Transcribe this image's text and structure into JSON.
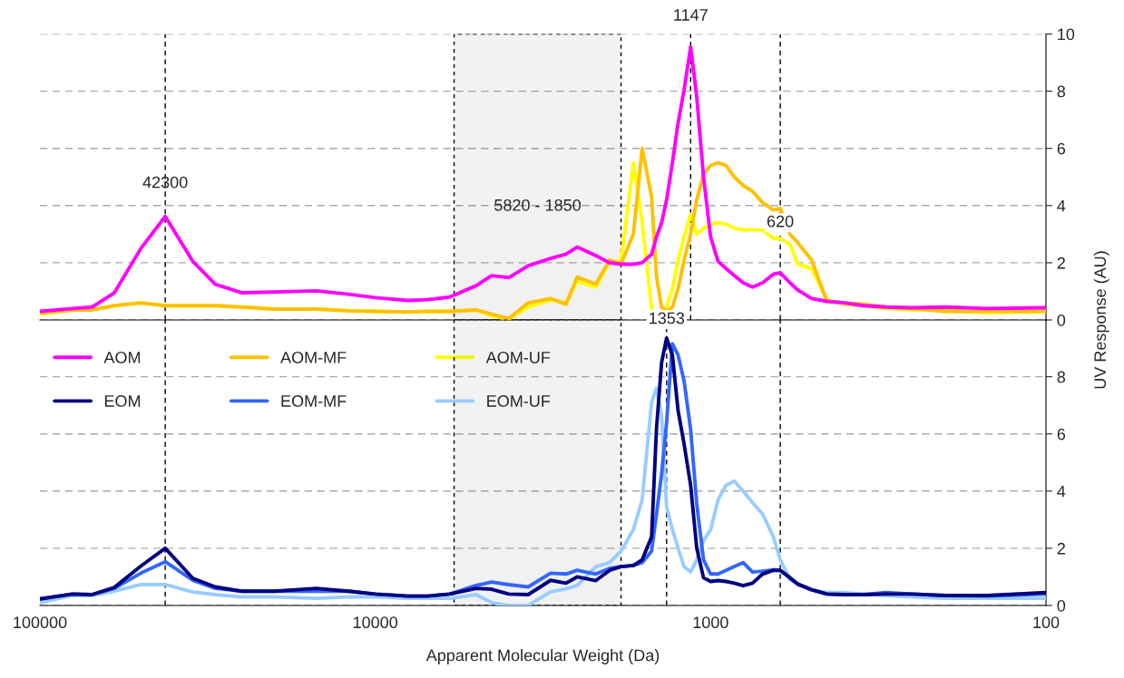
{
  "chart_data": [
    {
      "type": "line",
      "log": "x",
      "xlim": [
        100000,
        100
      ],
      "ylim": [
        0,
        10
      ],
      "yticks": [
        0,
        2,
        4,
        6,
        8,
        10
      ],
      "tick_labels": "y",
      "grid": "y",
      "legend": "bottom left",
      "line_style": "solid",
      "marker": "none",
      "x": [
        100000,
        80000,
        70000,
        60000,
        50000,
        42300,
        35000,
        30000,
        25000,
        20000,
        15000,
        12000,
        10000,
        8000,
        7000,
        6000,
        5000,
        4500,
        4000,
        3500,
        3000,
        2700,
        2500,
        2200,
        2000,
        1850,
        1700,
        1600,
        1500,
        1450,
        1400,
        1353,
        1300,
        1250,
        1200,
        1147,
        1100,
        1050,
        1000,
        950,
        900,
        850,
        800,
        750,
        700,
        650,
        620,
        580,
        550,
        500,
        450,
        400,
        350,
        300,
        250,
        200,
        150,
        100
      ],
      "series": [
        {
          "name": "AOM",
          "color": "#ff00ff",
          "values": [
            0.3,
            0.4,
            0.45,
            0.95,
            2.5,
            3.62,
            2.05,
            1.25,
            0.95,
            0.98,
            1.02,
            0.9,
            0.78,
            0.68,
            0.71,
            0.8,
            1.2,
            1.55,
            1.48,
            1.9,
            2.15,
            2.3,
            2.55,
            2.25,
            2.0,
            1.95,
            1.95,
            2.0,
            2.3,
            2.9,
            3.4,
            4.2,
            5.5,
            6.9,
            8.05,
            9.55,
            7.8,
            5.0,
            2.9,
            2.05,
            1.8,
            1.55,
            1.3,
            1.15,
            1.3,
            1.6,
            1.65,
            1.3,
            1.05,
            0.75,
            0.65,
            0.6,
            0.5,
            0.45,
            0.43,
            0.45,
            0.4,
            0.43
          ]
        },
        {
          "name": "AOM-MF",
          "color": "#ffc000",
          "values": [
            0.25,
            0.35,
            0.35,
            0.5,
            0.6,
            0.5,
            0.5,
            0.5,
            0.45,
            0.38,
            0.38,
            0.32,
            0.3,
            0.28,
            0.3,
            0.3,
            0.35,
            0.2,
            0.05,
            0.6,
            0.75,
            0.55,
            1.5,
            1.25,
            2.1,
            1.95,
            3.0,
            6.0,
            4.3,
            1.5,
            0.45,
            0.3,
            0.45,
            1.1,
            2.1,
            3.0,
            4.2,
            5.1,
            5.4,
            5.5,
            5.4,
            5.0,
            4.7,
            4.5,
            4.1,
            3.85,
            3.9,
            3.0,
            2.7,
            2.1,
            0.65,
            0.6,
            0.55,
            0.45,
            0.4,
            0.3,
            0.3,
            0.3
          ]
        },
        {
          "name": "AOM-UF",
          "color": "#ffff00",
          "values": [
            0.2,
            0.35,
            0.35,
            0.5,
            0.6,
            0.5,
            0.5,
            0.5,
            0.45,
            0.38,
            0.38,
            0.32,
            0.3,
            0.28,
            0.3,
            0.3,
            0.35,
            0.15,
            0.02,
            0.45,
            0.7,
            0.6,
            1.35,
            1.15,
            2.05,
            2.05,
            5.5,
            3.4,
            0.4,
            null,
            null,
            0.45,
            1.1,
            2.1,
            2.9,
            3.7,
            3.0,
            3.2,
            3.35,
            3.4,
            3.35,
            3.2,
            3.15,
            3.15,
            3.15,
            2.85,
            2.85,
            2.65,
            1.95,
            1.8,
            0.7,
            0.55,
            0.5,
            0.4,
            0.35,
            0.35,
            0.25,
            0.3
          ]
        }
      ],
      "ref_lines": [
        {
          "axis": "x",
          "value": 42300,
          "color": "#000000",
          "line_style": "dashed"
        },
        {
          "axis": "x",
          "value": 1147,
          "color": "#000000",
          "line_style": "dashed"
        },
        {
          "axis": "x",
          "value": 620,
          "color": "#000000",
          "line_style": "dashed"
        }
      ],
      "bands": [
        {
          "axis": "x",
          "from": 5820,
          "to": 1850,
          "color": "#000000"
        }
      ],
      "annotations": [
        {
          "text": "42300",
          "x": 42300,
          "y": 4.5
        },
        {
          "text": "1147",
          "x": 1147,
          "y": 10
        },
        "5820 - 1850",
        {
          "text": "620",
          "x": 620,
          "y": 3.4
        }
      ]
    },
    {
      "type": "line",
      "log": "x",
      "xlim": [
        100000,
        100
      ],
      "xticks": [
        100000,
        10000,
        1000,
        100
      ],
      "ylim": [
        0,
        10
      ],
      "yticks": [
        0,
        2,
        4,
        6,
        8
      ],
      "grid": "y",
      "legend": "top left",
      "line_style": "solid",
      "marker": "none",
      "xlabel": "Apparent Molecular Weight (Da)",
      "ylabel": "UV Response (AU)",
      "x": [
        100000,
        80000,
        70000,
        60000,
        50000,
        42300,
        35000,
        30000,
        25000,
        20000,
        15000,
        12000,
        10000,
        8000,
        7000,
        6000,
        5000,
        4500,
        4000,
        3500,
        3000,
        2700,
        2500,
        2200,
        2000,
        1850,
        1700,
        1600,
        1500,
        1450,
        1400,
        1353,
        1300,
        1250,
        1200,
        1147,
        1100,
        1050,
        1000,
        950,
        900,
        850,
        800,
        750,
        700,
        650,
        620,
        580,
        550,
        500,
        450,
        400,
        350,
        300,
        250,
        200,
        150,
        100
      ],
      "series": [
        {
          "name": "EOM",
          "color": "#000080",
          "values": [
            0.23,
            0.4,
            0.38,
            0.63,
            1.38,
            2.0,
            0.95,
            0.65,
            0.5,
            0.5,
            0.6,
            0.5,
            0.4,
            0.33,
            0.33,
            0.4,
            0.6,
            0.57,
            0.4,
            0.38,
            0.88,
            0.78,
            1.0,
            0.87,
            1.23,
            1.36,
            1.4,
            1.6,
            2.4,
            6.2,
            8.5,
            9.35,
            8.75,
            6.8,
            5.65,
            4.2,
            2.0,
            0.97,
            0.84,
            0.87,
            0.84,
            0.78,
            0.69,
            0.78,
            1.1,
            1.23,
            1.23,
            0.97,
            0.75,
            0.55,
            0.4,
            0.38,
            0.38,
            0.4,
            0.4,
            0.35,
            0.35,
            0.45
          ]
        },
        {
          "name": "EOM-MF",
          "color": "#3366ff",
          "values": [
            0.23,
            0.4,
            0.38,
            0.6,
            1.13,
            1.53,
            0.88,
            0.6,
            0.5,
            0.5,
            0.5,
            0.5,
            0.4,
            0.33,
            0.33,
            0.4,
            0.7,
            0.82,
            0.73,
            0.65,
            1.13,
            1.1,
            1.23,
            1.1,
            1.3,
            1.36,
            1.4,
            1.5,
            1.9,
            3.2,
            4.6,
            6.4,
            9.15,
            8.75,
            7.85,
            6.15,
            3.55,
            1.6,
            1.1,
            1.1,
            1.23,
            1.36,
            1.5,
            1.17,
            1.2,
            1.25,
            1.23,
            0.97,
            0.75,
            0.55,
            0.4,
            0.38,
            0.38,
            0.45,
            0.4,
            0.35,
            0.33,
            0.4
          ]
        },
        {
          "name": "EOM-UF",
          "color": "#99ccff",
          "values": [
            0.1,
            0.35,
            0.35,
            0.5,
            0.73,
            0.73,
            0.47,
            0.38,
            0.3,
            0.3,
            0.25,
            0.3,
            0.3,
            0.25,
            0.25,
            0.25,
            0.38,
            0.1,
            0.0,
            0.0,
            0.48,
            0.58,
            0.7,
            1.36,
            1.5,
            1.9,
            2.65,
            3.7,
            7.1,
            7.6,
            6.6,
            3.45,
            2.65,
            2.0,
            1.36,
            1.17,
            1.6,
            2.27,
            2.65,
            3.7,
            4.2,
            4.35,
            4.0,
            3.6,
            3.2,
            2.4,
            1.6,
            0.9,
            0.75,
            0.55,
            0.45,
            0.45,
            0.4,
            0.35,
            0.3,
            0.25,
            0.25,
            0.25
          ]
        }
      ],
      "ref_lines": [
        {
          "axis": "x",
          "value": 42300,
          "color": "#000000",
          "line_style": "dashed"
        },
        {
          "axis": "x",
          "value": 1353,
          "color": "#000000",
          "line_style": "dashed"
        },
        {
          "axis": "x",
          "value": 620,
          "color": "#000000",
          "line_style": "dashed"
        }
      ],
      "bands": [
        {
          "axis": "x",
          "from": 5820,
          "to": 1850,
          "color": "#000000"
        }
      ],
      "annotations": [
        {
          "text": "1353",
          "x": 1353,
          "y": 10
        }
      ]
    }
  ]
}
